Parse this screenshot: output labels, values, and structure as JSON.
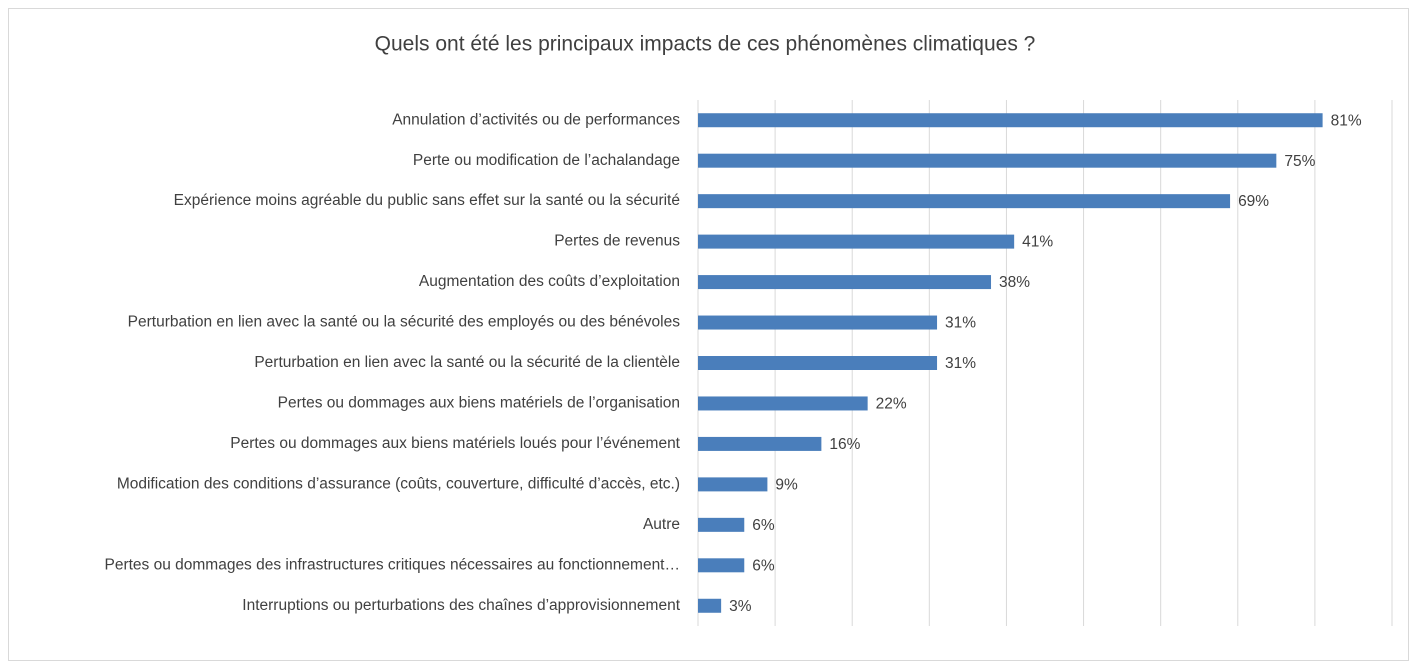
{
  "chart_data": {
    "type": "bar",
    "orientation": "horizontal",
    "title": "Quels ont été les principaux impacts de ces phénomènes climatiques ?",
    "categories": [
      "Annulation d’activités ou de performances",
      "Perte ou modification de l’achalandage",
      "Expérience moins agréable du public sans effet sur la santé ou la sécurité",
      "Pertes de revenus",
      "Augmentation des coûts d’exploitation",
      "Perturbation en lien avec la santé ou la sécurité des employés ou des bénévoles",
      "Perturbation en lien avec la santé ou la sécurité de la clientèle",
      "Pertes ou dommages aux biens matériels de l’organisation",
      "Pertes ou dommages aux biens matériels loués pour l’événement",
      "Modification des conditions d’assurance (coûts, couverture, difficulté d’accès, etc.)",
      "Autre",
      "Pertes ou dommages des infrastructures critiques nécessaires au fonctionnement…",
      "Interruptions ou perturbations des chaînes d’approvisionnement"
    ],
    "values": [
      81,
      75,
      69,
      41,
      38,
      31,
      31,
      22,
      16,
      9,
      6,
      6,
      3
    ],
    "value_labels": [
      "81%",
      "75%",
      "69%",
      "41%",
      "38%",
      "31%",
      "31%",
      "22%",
      "16%",
      "9%",
      "6%",
      "6%",
      "3%"
    ],
    "color": "#4a7ebb",
    "xlim": [
      0,
      90
    ],
    "xticks": [
      0,
      10,
      20,
      30,
      40,
      50,
      60,
      70,
      80,
      90
    ],
    "grid": true
  }
}
